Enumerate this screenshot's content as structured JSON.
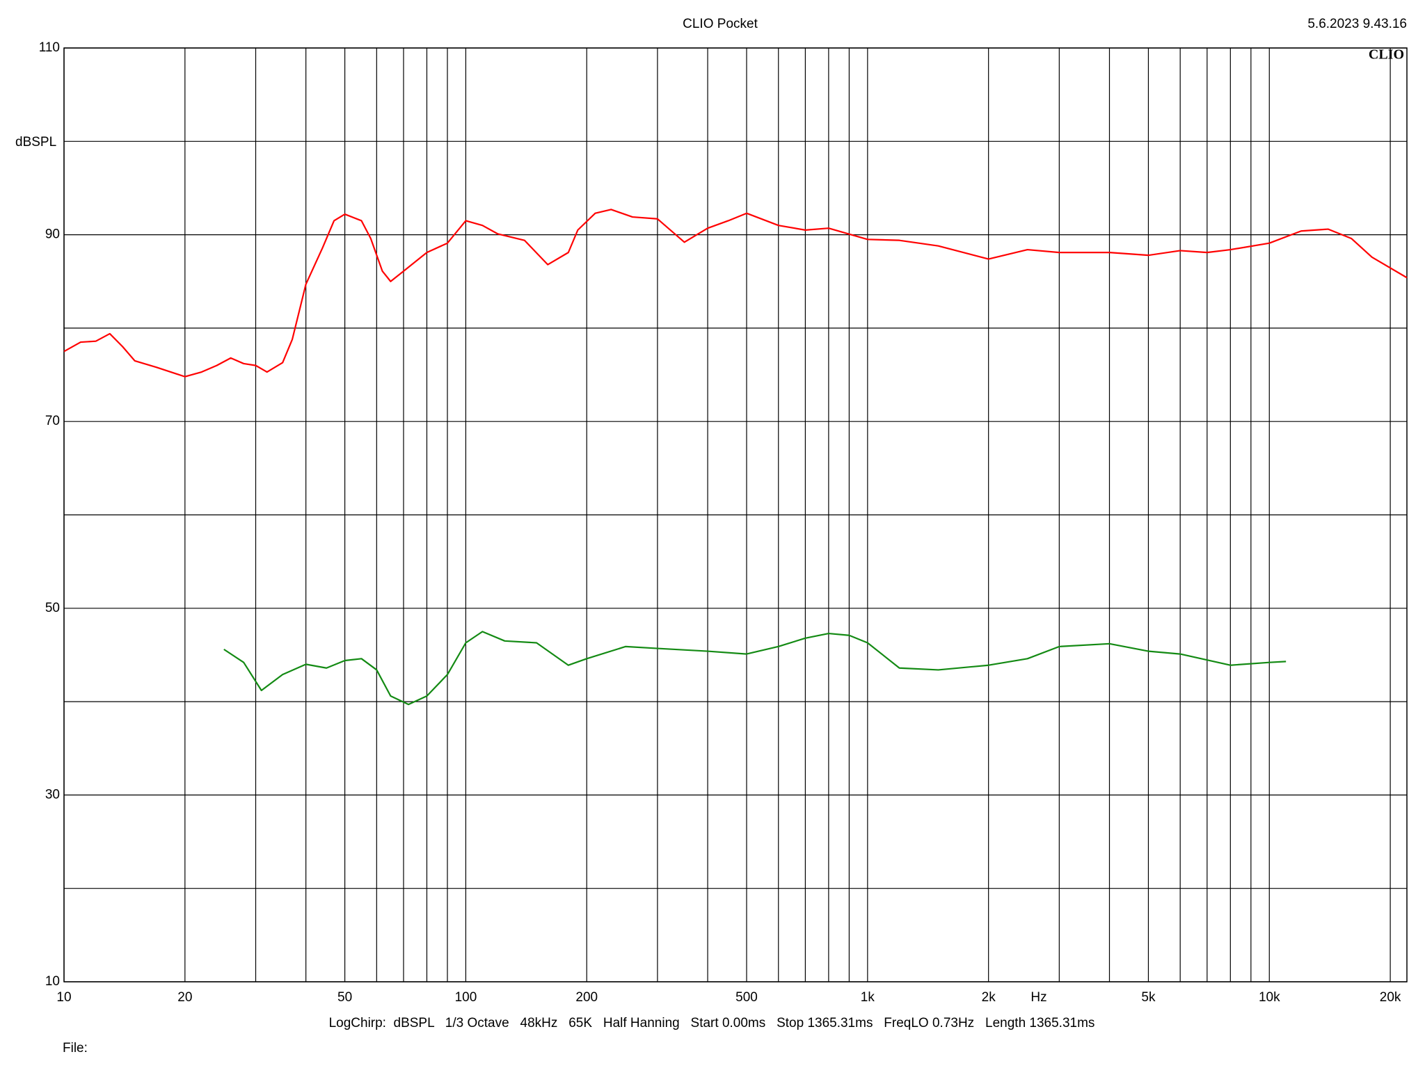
{
  "chart_data": {
    "type": "line",
    "title": "CLIO Pocket",
    "timestamp": "5.6.2023 9.43.16",
    "logo": "CLIO",
    "y_label": "dBSPL",
    "x_label": "Hz",
    "footer": "LogChirp:  dBSPL   1/3 Octave   48kHz   65K   Half Hanning   Start 0.00ms   Stop 1365.31ms   FreqLO 0.73Hz   Length 1365.31ms",
    "file_label": "File:",
    "xscale": "log",
    "xlim": [
      10,
      22000
    ],
    "ylim": [
      10,
      110
    ],
    "xticks": [
      10,
      20,
      50,
      100,
      200,
      500,
      {
        "value": 1000,
        "label": "1k"
      },
      {
        "value": 2000,
        "label": "2k"
      },
      {
        "value": 5000,
        "label": "5k"
      },
      {
        "value": 10000,
        "label": "10k"
      },
      {
        "value": 20000,
        "label": "20k"
      }
    ],
    "yticks": [
      10,
      30,
      50,
      70,
      90,
      110
    ],
    "xgrid": [
      30,
      40,
      60,
      70,
      80,
      90,
      300,
      400,
      600,
      700,
      800,
      900,
      3000,
      4000,
      6000,
      7000,
      8000,
      9000
    ],
    "ygrid": [
      20,
      40,
      60,
      80,
      100
    ],
    "grid": true,
    "series": [
      {
        "color": "#ff0000",
        "x": [
          10,
          11,
          12,
          13,
          14,
          15,
          17,
          20,
          22,
          24,
          26,
          28,
          30,
          32,
          35,
          37,
          40,
          44,
          47,
          50,
          55,
          58,
          62,
          65,
          70,
          80,
          90,
          100,
          110,
          120,
          140,
          160,
          180,
          190,
          210,
          230,
          260,
          300,
          350,
          400,
          450,
          500,
          600,
          700,
          800,
          1000,
          1200,
          1500,
          2000,
          2500,
          3000,
          4000,
          5000,
          6000,
          7000,
          8000,
          10000,
          12000,
          14000,
          16000,
          18000,
          22000
        ],
        "values": [
          77.5,
          78.5,
          78.6,
          79.4,
          78.0,
          76.5,
          75.8,
          74.8,
          75.3,
          76.0,
          76.8,
          76.2,
          76.0,
          75.3,
          76.3,
          78.8,
          84.7,
          88.6,
          91.5,
          92.2,
          91.5,
          89.6,
          86.1,
          85.0,
          86.1,
          88.1,
          89.1,
          91.5,
          91.0,
          90.1,
          89.4,
          86.8,
          88.1,
          90.5,
          92.3,
          92.7,
          91.9,
          91.7,
          89.2,
          90.7,
          91.5,
          92.3,
          91.0,
          90.5,
          90.7,
          89.5,
          89.4,
          88.8,
          87.4,
          88.4,
          88.1,
          88.1,
          87.8,
          88.3,
          88.1,
          88.4,
          89.1,
          90.4,
          90.6,
          89.6,
          87.6,
          85.4
        ]
      },
      {
        "color": "#138a13",
        "x": [
          25,
          28,
          31,
          35,
          40,
          45,
          50,
          55,
          60,
          65,
          72,
          80,
          90,
          100,
          110,
          125,
          150,
          180,
          200,
          250,
          300,
          400,
          500,
          600,
          700,
          800,
          900,
          1000,
          1200,
          1500,
          2000,
          2500,
          3000,
          4000,
          5000,
          6000,
          8000,
          10000,
          11000
        ],
        "values": [
          45.6,
          44.2,
          41.2,
          42.9,
          44.0,
          43.6,
          44.4,
          44.6,
          43.4,
          40.6,
          39.7,
          40.6,
          42.9,
          46.3,
          47.5,
          46.5,
          46.3,
          43.9,
          44.6,
          45.9,
          45.7,
          45.4,
          45.1,
          45.9,
          46.8,
          47.3,
          47.1,
          46.3,
          43.6,
          43.4,
          43.9,
          44.6,
          45.9,
          46.2,
          45.4,
          45.1,
          43.9,
          44.2,
          44.3
        ]
      }
    ]
  }
}
